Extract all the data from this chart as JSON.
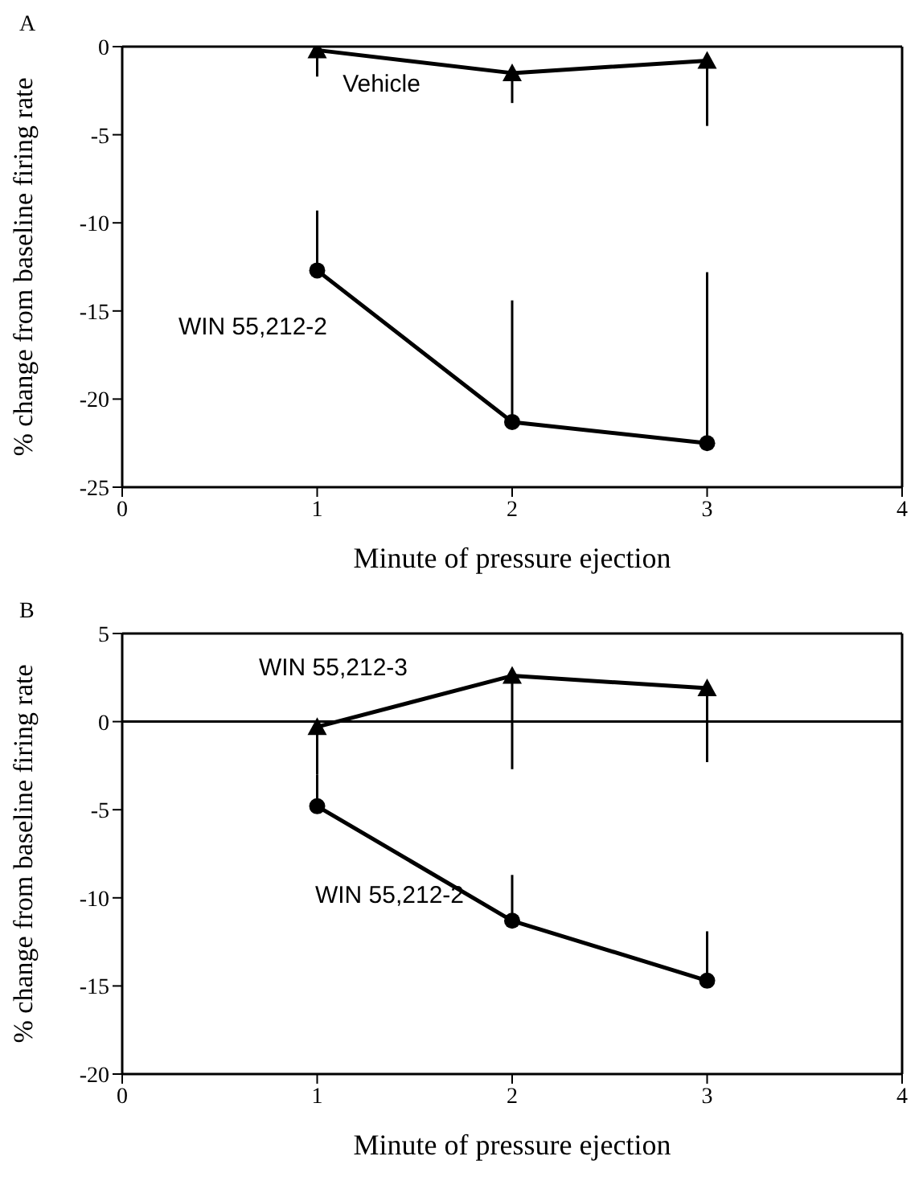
{
  "chart_data": [
    {
      "type": "line",
      "title": "A",
      "xlabel": "Minute of pressure ejection",
      "ylabel": "% change from baseline firing rate",
      "x": [
        1,
        2,
        3
      ],
      "xlim": [
        0,
        4
      ],
      "xticks": [
        0,
        1,
        2,
        3,
        4
      ],
      "ylim": [
        -25,
        0
      ],
      "yticks": [
        0,
        -5,
        -10,
        -15,
        -20,
        -25
      ],
      "grid": false,
      "series": [
        {
          "name": "Vehicle",
          "color": "#000000",
          "marker": "triangle",
          "values": [
            -0.2,
            -1.5,
            -0.8
          ],
          "errors": [
            [
              -1.7,
              -0.2
            ],
            [
              -3.2,
              -1.5
            ],
            [
              -4.5,
              -0.8
            ]
          ]
        },
        {
          "name": "WIN 55,212-2",
          "color": "#000000",
          "marker": "circle",
          "values": [
            -12.7,
            -21.3,
            -22.5
          ],
          "errors": [
            [
              -12.7,
              -9.3
            ],
            [
              -21.3,
              -14.4
            ],
            [
              -22.5,
              -12.8
            ]
          ]
        }
      ]
    },
    {
      "type": "line",
      "title": "B",
      "xlabel": "Minute of pressure ejection",
      "ylabel": "% change from baseline firing rate",
      "x": [
        1,
        2,
        3
      ],
      "xlim": [
        0,
        4
      ],
      "xticks": [
        0,
        1,
        2,
        3,
        4
      ],
      "ylim": [
        -20,
        5
      ],
      "yticks": [
        5,
        0,
        -5,
        -10,
        -15,
        -20
      ],
      "grid": false,
      "ref_lines": [
        {
          "axis": "y",
          "value": 0,
          "color": "#000000"
        }
      ],
      "series": [
        {
          "name": "WIN 55,212-3",
          "color": "#000000",
          "marker": "triangle",
          "values": [
            -0.3,
            2.6,
            1.9
          ],
          "errors": [
            [
              -3.0,
              -0.3
            ],
            [
              -2.7,
              2.6
            ],
            [
              -2.3,
              1.9
            ]
          ]
        },
        {
          "name": "WIN 55,212-2",
          "color": "#000000",
          "marker": "circle",
          "values": [
            -4.8,
            -11.3,
            -14.7
          ],
          "errors": [
            [
              -4.8,
              -3.0
            ],
            [
              -11.3,
              -8.7
            ],
            [
              -14.7,
              -11.9
            ]
          ]
        }
      ]
    }
  ]
}
